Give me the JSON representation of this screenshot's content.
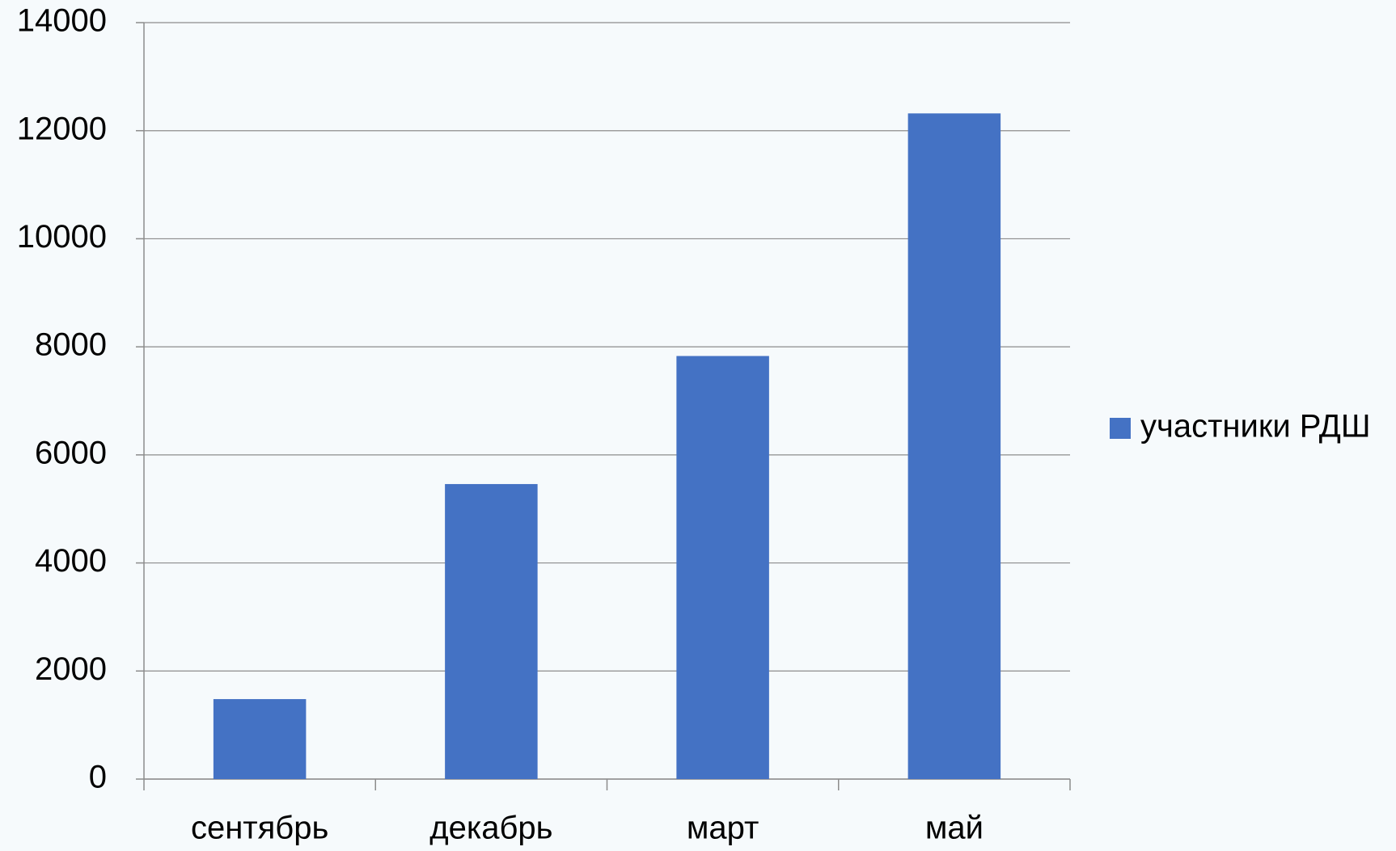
{
  "chart_data": {
    "type": "bar",
    "categories": [
      "сентябрь",
      "декабрь",
      "март",
      "май"
    ],
    "series": [
      {
        "name": "участники РДШ",
        "color": "#4472c4",
        "values": [
          1480,
          5460,
          7830,
          12320
        ]
      }
    ],
    "ylim": [
      0,
      14000
    ],
    "yticks": [
      0,
      2000,
      4000,
      6000,
      8000,
      10000,
      12000,
      14000
    ],
    "grid": true,
    "legend": "right"
  }
}
